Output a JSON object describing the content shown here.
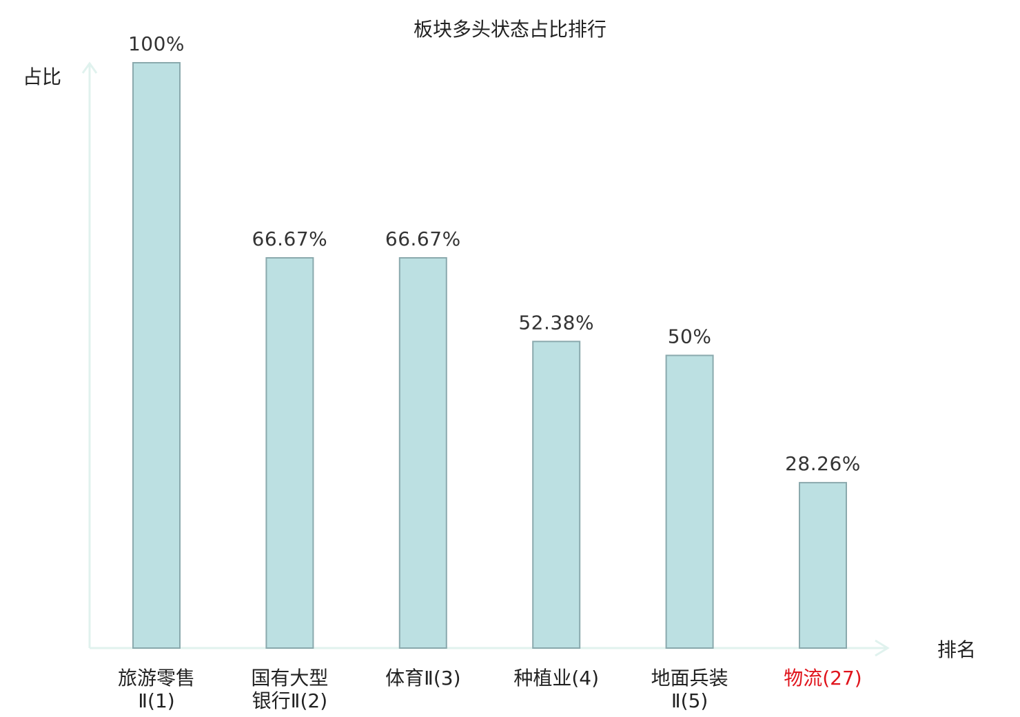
{
  "chart_data": {
    "type": "bar",
    "title": "板块多头状态占比排行",
    "ylabel": "占比",
    "xlabel": "排名",
    "categories": [
      {
        "lines": [
          "旅游零售",
          "Ⅱ(1)"
        ],
        "highlight": false
      },
      {
        "lines": [
          "国有大型",
          "银行Ⅱ(2)"
        ],
        "highlight": false
      },
      {
        "lines": [
          "体育Ⅱ(3)"
        ],
        "highlight": false
      },
      {
        "lines": [
          "种植业(4)"
        ],
        "highlight": false
      },
      {
        "lines": [
          "地面兵装",
          "Ⅱ(5)"
        ],
        "highlight": false
      },
      {
        "lines": [
          "物流(27)"
        ],
        "highlight": true
      }
    ],
    "values": [
      100,
      66.67,
      66.67,
      52.38,
      50,
      28.26
    ],
    "value_labels": [
      "100%",
      "66.67%",
      "66.67%",
      "52.38%",
      "50%",
      "28.26%"
    ],
    "ylim": [
      0,
      100
    ],
    "grid": false,
    "legend": "none",
    "colors": {
      "bar_fill": "#bce0e2",
      "bar_stroke": "#8aa9ad",
      "axis": "#e0f2ee",
      "text": "#222222",
      "highlight_text": "#e0141c"
    }
  }
}
